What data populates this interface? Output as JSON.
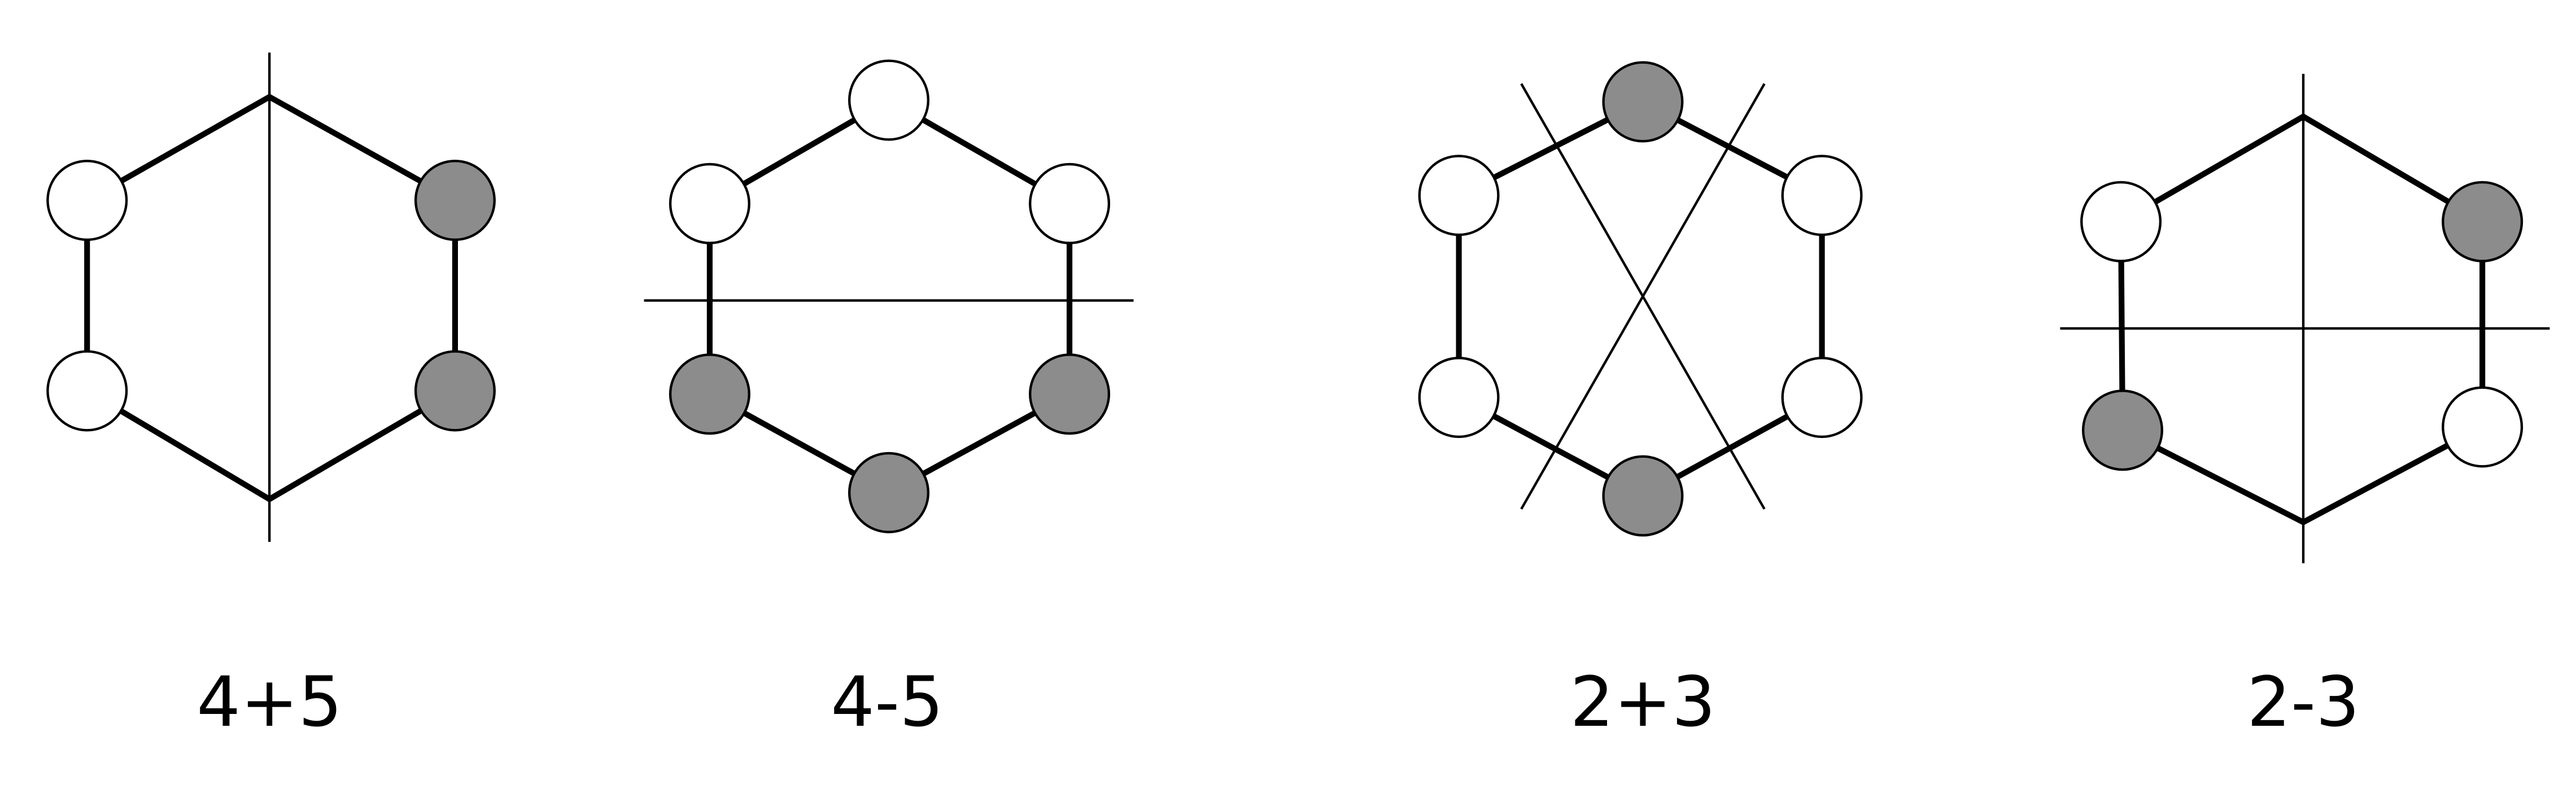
{
  "diagrams": [
    {
      "label": "4+5"
    },
    {
      "label": "4-5"
    },
    {
      "label": "2+3"
    },
    {
      "label": "2-3"
    }
  ]
}
